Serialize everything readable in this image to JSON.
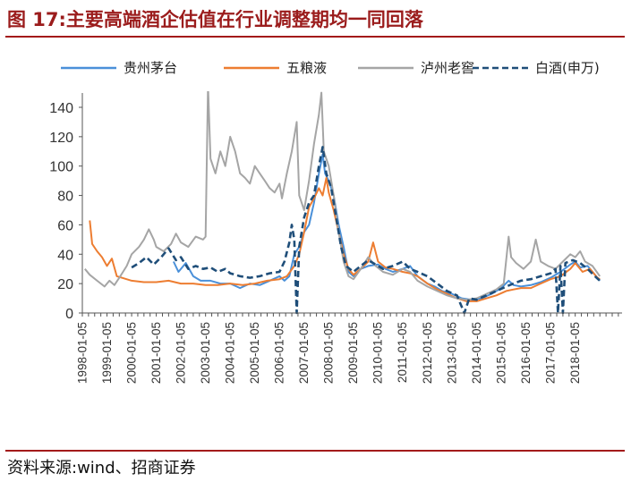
{
  "figure": {
    "title": "图 17:主要高端酒企估值在行业调整期均一同回落",
    "source": "资料来源:wind、招商证券"
  },
  "colors": {
    "title": "#9b1c1c",
    "rule": "#a31a1a"
  },
  "chart_data": {
    "type": "line",
    "title": "",
    "xlabel": "",
    "ylabel": "",
    "ylim": [
      0,
      150
    ],
    "yticks": [
      0,
      20,
      40,
      60,
      80,
      100,
      120,
      140
    ],
    "xlim": [
      1998.0,
      2019.9
    ],
    "xtick_labels": [
      "1998-01-05",
      "1999-01-05",
      "2000-01-05",
      "2001-01-05",
      "2002-01-05",
      "2003-01-05",
      "2004-01-05",
      "2005-01-05",
      "2006-01-05",
      "2007-01-05",
      "2008-01-05",
      "2009-01-05",
      "2010-01-05",
      "2011-01-05",
      "2012-01-05",
      "2013-01-05",
      "2014-01-05",
      "2015-01-05",
      "2016-01-05",
      "2017-01-05",
      "2018-01-05"
    ],
    "grid": false,
    "legend_position": "top",
    "series": [
      {
        "name": "贵州茅台",
        "color": "#4a90d9",
        "style": "solid",
        "points": [
          [
            2001.7,
            35
          ],
          [
            2001.9,
            28
          ],
          [
            2002.2,
            34
          ],
          [
            2002.5,
            25
          ],
          [
            2002.8,
            22
          ],
          [
            2003.2,
            22
          ],
          [
            2003.6,
            20
          ],
          [
            2004.0,
            20
          ],
          [
            2004.4,
            17
          ],
          [
            2004.8,
            20
          ],
          [
            2005.2,
            19
          ],
          [
            2005.6,
            22
          ],
          [
            2006.0,
            25
          ],
          [
            2006.2,
            22
          ],
          [
            2006.4,
            25
          ],
          [
            2006.6,
            40
          ],
          [
            2006.8,
            45
          ],
          [
            2007.0,
            55
          ],
          [
            2007.2,
            60
          ],
          [
            2007.4,
            75
          ],
          [
            2007.6,
            95
          ],
          [
            2007.75,
            108
          ],
          [
            2007.85,
            95
          ],
          [
            2008.0,
            90
          ],
          [
            2008.2,
            80
          ],
          [
            2008.4,
            60
          ],
          [
            2008.6,
            45
          ],
          [
            2008.8,
            28
          ],
          [
            2009.0,
            25
          ],
          [
            2009.3,
            30
          ],
          [
            2009.6,
            32
          ],
          [
            2010.0,
            33
          ],
          [
            2010.3,
            30
          ],
          [
            2010.6,
            28
          ],
          [
            2011.0,
            30
          ],
          [
            2011.3,
            32
          ],
          [
            2011.6,
            25
          ],
          [
            2012.0,
            20
          ],
          [
            2012.3,
            18
          ],
          [
            2012.6,
            15
          ],
          [
            2013.0,
            13
          ],
          [
            2013.4,
            10
          ],
          [
            2013.8,
            9
          ],
          [
            2014.2,
            10
          ],
          [
            2014.6,
            13
          ],
          [
            2015.0,
            17
          ],
          [
            2015.3,
            22
          ],
          [
            2015.5,
            19
          ],
          [
            2015.8,
            18
          ],
          [
            2016.2,
            19
          ],
          [
            2016.6,
            21
          ],
          [
            2017.0,
            24
          ],
          [
            2017.4,
            28
          ],
          [
            2017.8,
            33
          ],
          [
            2018.0,
            35
          ],
          [
            2018.2,
            31
          ],
          [
            2018.5,
            32
          ],
          [
            2018.8,
            26
          ],
          [
            2019.0,
            22
          ]
        ]
      },
      {
        "name": "五粮液",
        "color": "#ed7d31",
        "style": "solid",
        "points": [
          [
            1998.3,
            63
          ],
          [
            1998.4,
            47
          ],
          [
            1998.6,
            42
          ],
          [
            1998.8,
            38
          ],
          [
            1999.0,
            32
          ],
          [
            1999.2,
            37
          ],
          [
            1999.4,
            25
          ],
          [
            1999.6,
            24
          ],
          [
            2000.0,
            22
          ],
          [
            2000.5,
            21
          ],
          [
            2001.0,
            21
          ],
          [
            2001.5,
            22
          ],
          [
            2002.0,
            20
          ],
          [
            2002.5,
            20
          ],
          [
            2003.0,
            19
          ],
          [
            2003.5,
            19
          ],
          [
            2004.0,
            20
          ],
          [
            2004.5,
            19
          ],
          [
            2005.0,
            20
          ],
          [
            2005.5,
            22
          ],
          [
            2006.0,
            23
          ],
          [
            2006.3,
            25
          ],
          [
            2006.6,
            32
          ],
          [
            2006.8,
            40
          ],
          [
            2007.0,
            55
          ],
          [
            2007.2,
            72
          ],
          [
            2007.4,
            78
          ],
          [
            2007.6,
            85
          ],
          [
            2007.75,
            80
          ],
          [
            2007.9,
            92
          ],
          [
            2008.0,
            82
          ],
          [
            2008.2,
            70
          ],
          [
            2008.4,
            55
          ],
          [
            2008.6,
            40
          ],
          [
            2008.8,
            30
          ],
          [
            2009.0,
            26
          ],
          [
            2009.3,
            30
          ],
          [
            2009.6,
            35
          ],
          [
            2009.8,
            48
          ],
          [
            2010.0,
            35
          ],
          [
            2010.3,
            31
          ],
          [
            2010.6,
            30
          ],
          [
            2011.0,
            28
          ],
          [
            2011.3,
            27
          ],
          [
            2011.6,
            25
          ],
          [
            2012.0,
            20
          ],
          [
            2012.4,
            16
          ],
          [
            2012.8,
            13
          ],
          [
            2013.2,
            10
          ],
          [
            2013.6,
            8
          ],
          [
            2014.0,
            8
          ],
          [
            2014.4,
            10
          ],
          [
            2014.8,
            12
          ],
          [
            2015.2,
            15
          ],
          [
            2015.5,
            16
          ],
          [
            2015.8,
            17
          ],
          [
            2016.2,
            17
          ],
          [
            2016.6,
            20
          ],
          [
            2017.0,
            23
          ],
          [
            2017.4,
            25
          ],
          [
            2017.8,
            30
          ],
          [
            2018.0,
            34
          ],
          [
            2018.3,
            28
          ],
          [
            2018.6,
            30
          ],
          [
            2018.9,
            24
          ],
          [
            2019.0,
            23
          ]
        ]
      },
      {
        "name": "泸州老窖",
        "color": "#a5a5a5",
        "style": "solid",
        "points": [
          [
            1998.1,
            30
          ],
          [
            1998.3,
            26
          ],
          [
            1998.6,
            22
          ],
          [
            1998.9,
            18
          ],
          [
            1999.1,
            22
          ],
          [
            1999.3,
            19
          ],
          [
            1999.5,
            24
          ],
          [
            1999.8,
            32
          ],
          [
            2000.0,
            40
          ],
          [
            2000.3,
            45
          ],
          [
            2000.5,
            50
          ],
          [
            2000.7,
            57
          ],
          [
            2000.9,
            50
          ],
          [
            2001.0,
            45
          ],
          [
            2001.3,
            42
          ],
          [
            2001.6,
            47
          ],
          [
            2001.8,
            54
          ],
          [
            2002.0,
            48
          ],
          [
            2002.3,
            45
          ],
          [
            2002.6,
            52
          ],
          [
            2002.9,
            50
          ],
          [
            2003.0,
            52
          ],
          [
            2003.1,
            155
          ],
          [
            2003.2,
            105
          ],
          [
            2003.4,
            95
          ],
          [
            2003.6,
            110
          ],
          [
            2003.8,
            100
          ],
          [
            2004.0,
            120
          ],
          [
            2004.2,
            110
          ],
          [
            2004.4,
            95
          ],
          [
            2004.6,
            92
          ],
          [
            2004.8,
            88
          ],
          [
            2005.0,
            100
          ],
          [
            2005.2,
            95
          ],
          [
            2005.4,
            90
          ],
          [
            2005.6,
            85
          ],
          [
            2005.8,
            82
          ],
          [
            2006.0,
            88
          ],
          [
            2006.1,
            78
          ],
          [
            2006.3,
            95
          ],
          [
            2006.5,
            110
          ],
          [
            2006.7,
            130
          ],
          [
            2006.8,
            80
          ],
          [
            2007.0,
            70
          ],
          [
            2007.2,
            90
          ],
          [
            2007.4,
            115
          ],
          [
            2007.6,
            135
          ],
          [
            2007.7,
            150
          ],
          [
            2007.8,
            110
          ],
          [
            2008.0,
            100
          ],
          [
            2008.2,
            80
          ],
          [
            2008.4,
            55
          ],
          [
            2008.6,
            35
          ],
          [
            2008.8,
            25
          ],
          [
            2009.0,
            23
          ],
          [
            2009.3,
            30
          ],
          [
            2009.6,
            38
          ],
          [
            2009.9,
            32
          ],
          [
            2010.2,
            28
          ],
          [
            2010.6,
            26
          ],
          [
            2011.0,
            30
          ],
          [
            2011.3,
            28
          ],
          [
            2011.6,
            22
          ],
          [
            2012.0,
            18
          ],
          [
            2012.4,
            15
          ],
          [
            2012.8,
            12
          ],
          [
            2013.2,
            10
          ],
          [
            2013.6,
            9
          ],
          [
            2014.0,
            10
          ],
          [
            2014.4,
            13
          ],
          [
            2014.8,
            16
          ],
          [
            2015.1,
            20
          ],
          [
            2015.3,
            52
          ],
          [
            2015.4,
            38
          ],
          [
            2015.6,
            34
          ],
          [
            2015.9,
            30
          ],
          [
            2016.2,
            35
          ],
          [
            2016.4,
            50
          ],
          [
            2016.6,
            35
          ],
          [
            2016.9,
            32
          ],
          [
            2017.2,
            30
          ],
          [
            2017.5,
            35
          ],
          [
            2017.8,
            40
          ],
          [
            2018.0,
            38
          ],
          [
            2018.2,
            42
          ],
          [
            2018.4,
            35
          ],
          [
            2018.7,
            32
          ],
          [
            2019.0,
            25
          ]
        ]
      },
      {
        "name": "白酒(申万)",
        "color": "#1f4e79",
        "style": "dashed",
        "points": [
          [
            2000.0,
            31
          ],
          [
            2000.3,
            34
          ],
          [
            2000.6,
            38
          ],
          [
            2000.9,
            33
          ],
          [
            2001.2,
            38
          ],
          [
            2001.5,
            44
          ],
          [
            2001.8,
            36
          ],
          [
            2002.0,
            38
          ],
          [
            2002.3,
            30
          ],
          [
            2002.6,
            32
          ],
          [
            2002.9,
            30
          ],
          [
            2003.2,
            31
          ],
          [
            2003.5,
            28
          ],
          [
            2003.8,
            30
          ],
          [
            2004.0,
            27
          ],
          [
            2004.4,
            25
          ],
          [
            2004.8,
            24
          ],
          [
            2005.2,
            25
          ],
          [
            2005.6,
            27
          ],
          [
            2006.0,
            28
          ],
          [
            2006.2,
            35
          ],
          [
            2006.4,
            48
          ],
          [
            2006.5,
            60
          ],
          [
            2006.6,
            50
          ],
          [
            2006.7,
            0
          ],
          [
            2006.8,
            45
          ],
          [
            2007.0,
            65
          ],
          [
            2007.2,
            75
          ],
          [
            2007.4,
            80
          ],
          [
            2007.6,
            100
          ],
          [
            2007.75,
            113
          ],
          [
            2007.9,
            95
          ],
          [
            2008.1,
            85
          ],
          [
            2008.3,
            65
          ],
          [
            2008.5,
            45
          ],
          [
            2008.7,
            32
          ],
          [
            2009.0,
            28
          ],
          [
            2009.3,
            32
          ],
          [
            2009.6,
            36
          ],
          [
            2009.9,
            33
          ],
          [
            2010.2,
            30
          ],
          [
            2010.6,
            32
          ],
          [
            2011.0,
            35
          ],
          [
            2011.3,
            30
          ],
          [
            2011.6,
            28
          ],
          [
            2012.0,
            25
          ],
          [
            2012.4,
            20
          ],
          [
            2012.8,
            15
          ],
          [
            2013.2,
            12
          ],
          [
            2013.5,
            0
          ],
          [
            2013.7,
            10
          ],
          [
            2014.0,
            9
          ],
          [
            2014.4,
            12
          ],
          [
            2014.8,
            15
          ],
          [
            2015.2,
            18
          ],
          [
            2015.5,
            20
          ],
          [
            2015.8,
            22
          ],
          [
            2016.2,
            23
          ],
          [
            2016.6,
            25
          ],
          [
            2017.0,
            27
          ],
          [
            2017.2,
            30
          ],
          [
            2017.3,
            0
          ],
          [
            2017.4,
            32
          ],
          [
            2017.5,
            0
          ],
          [
            2017.6,
            34
          ],
          [
            2017.9,
            36
          ],
          [
            2018.2,
            34
          ],
          [
            2018.5,
            30
          ],
          [
            2018.8,
            25
          ],
          [
            2019.0,
            22
          ]
        ]
      }
    ]
  }
}
